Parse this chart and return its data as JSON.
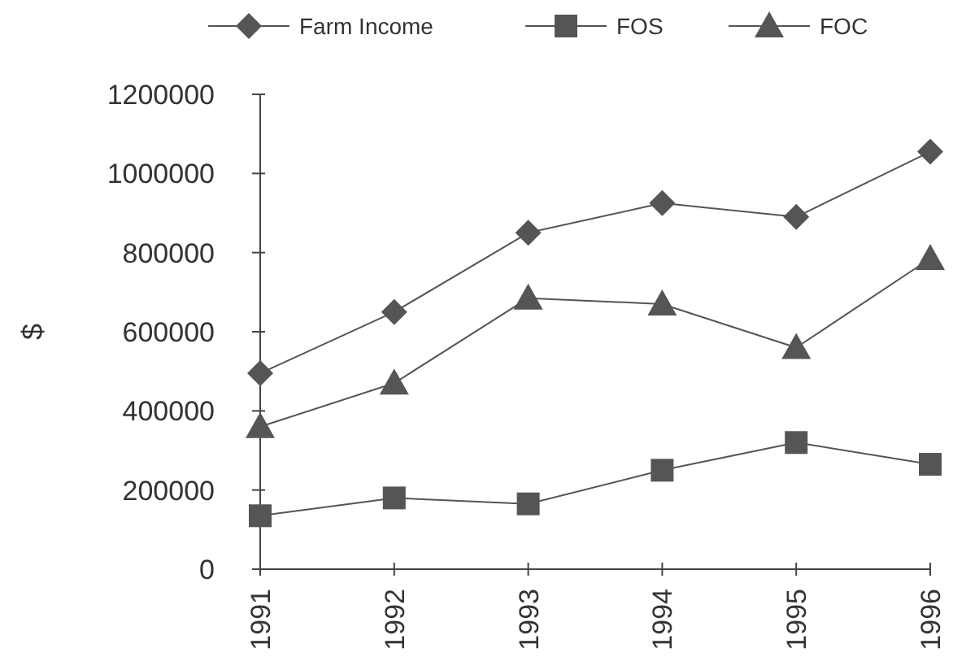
{
  "chart_data": {
    "type": "line",
    "ylabel": "$",
    "categories": [
      "1991",
      "1992",
      "1993",
      "1994",
      "1995",
      "1996"
    ],
    "series": [
      {
        "name": "Farm Income",
        "color": "#555555",
        "marker": "diamond",
        "values": [
          495000,
          650000,
          850000,
          925000,
          890000,
          1055000
        ]
      },
      {
        "name": "FOS",
        "color": "#555555",
        "marker": "square",
        "values": [
          135000,
          180000,
          165000,
          250000,
          320000,
          265000
        ]
      },
      {
        "name": "FOC",
        "color": "#555555",
        "marker": "triangle",
        "values": [
          360000,
          470000,
          685000,
          670000,
          560000,
          785000
        ]
      }
    ],
    "ylim": [
      0,
      1200000
    ],
    "yticks": [
      0,
      200000,
      400000,
      600000,
      800000,
      1000000,
      1200000
    ],
    "legend": "top",
    "grid": false
  }
}
